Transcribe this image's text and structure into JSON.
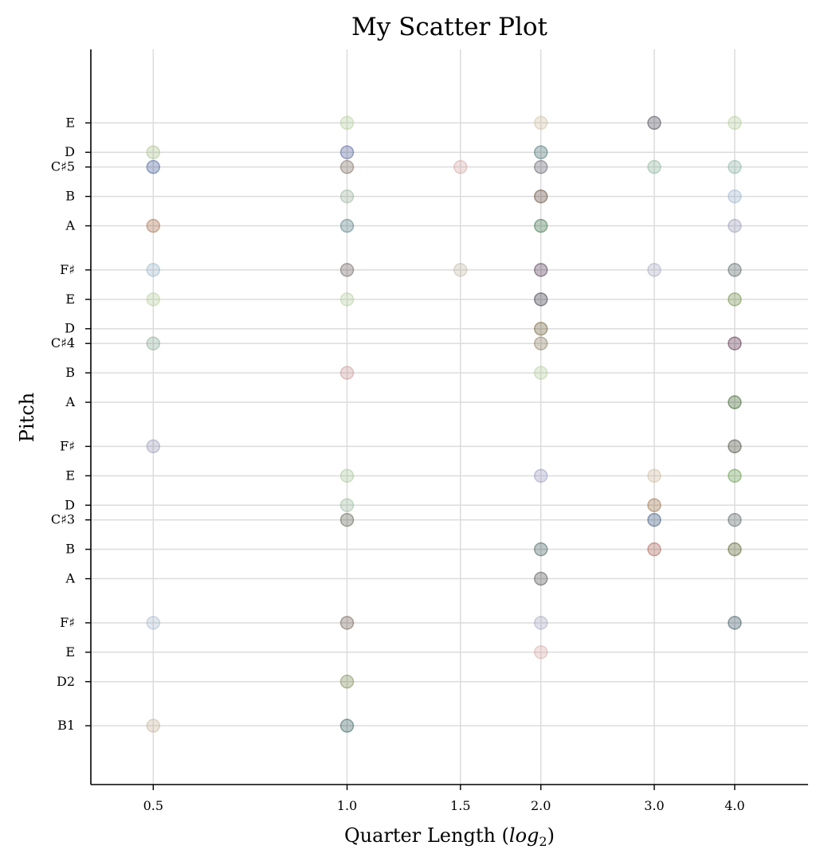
{
  "chart_data": {
    "type": "scatter",
    "title": "My Scatter Plot",
    "xlabel": "Quarter Length (",
    "xlabel_math": "log",
    "xlabel_sub": "2",
    "xlabel_close": ")",
    "ylabel": "Pitch",
    "x_scale": "log2",
    "xlim": [
      0.4,
      5.2
    ],
    "x_ticks": [
      0.5,
      1.0,
      1.5,
      2.0,
      3.0,
      4.0
    ],
    "x_tick_labels": [
      "0.5",
      "1.0",
      "1.5",
      "2.0",
      "3.0",
      "4.0"
    ],
    "ylim": [
      31,
      81
    ],
    "y_ticks": [
      {
        "midi": 35,
        "label": "B1"
      },
      {
        "midi": 38,
        "label": "D2"
      },
      {
        "midi": 40,
        "label": "E"
      },
      {
        "midi": 42,
        "label": "F♯"
      },
      {
        "midi": 45,
        "label": "A"
      },
      {
        "midi": 47,
        "label": "B"
      },
      {
        "midi": 49,
        "label": "C♯3"
      },
      {
        "midi": 50,
        "label": "D"
      },
      {
        "midi": 52,
        "label": "E"
      },
      {
        "midi": 54,
        "label": "F♯"
      },
      {
        "midi": 57,
        "label": "A"
      },
      {
        "midi": 59,
        "label": "B"
      },
      {
        "midi": 61,
        "label": "C♯4"
      },
      {
        "midi": 62,
        "label": "D"
      },
      {
        "midi": 64,
        "label": "E"
      },
      {
        "midi": 66,
        "label": "F♯"
      },
      {
        "midi": 69,
        "label": "A"
      },
      {
        "midi": 71,
        "label": "B"
      },
      {
        "midi": 73,
        "label": "C♯5"
      },
      {
        "midi": 74,
        "label": "D"
      },
      {
        "midi": 76,
        "label": "E"
      }
    ],
    "grid": true,
    "legend": "none",
    "marker_opacity": 0.3,
    "points": [
      {
        "x": 0.5,
        "y": 74,
        "color": "#9bb87a"
      },
      {
        "x": 0.5,
        "y": 73,
        "color": "#2a4a8a"
      },
      {
        "x": 0.5,
        "y": 69,
        "color": "#9a5a30"
      },
      {
        "x": 0.5,
        "y": 66,
        "color": "#8aa8c0"
      },
      {
        "x": 0.5,
        "y": 64,
        "color": "#a8c88a"
      },
      {
        "x": 0.5,
        "y": 61,
        "color": "#7aa08a"
      },
      {
        "x": 0.5,
        "y": 54,
        "color": "#8a8ab0"
      },
      {
        "x": 0.5,
        "y": 42,
        "color": "#9ab0c8"
      },
      {
        "x": 0.5,
        "y": 35,
        "color": "#c0a888"
      },
      {
        "x": 1.0,
        "y": 76,
        "color": "#a8c88a"
      },
      {
        "x": 1.0,
        "y": 74,
        "color": "#3a4a8a"
      },
      {
        "x": 1.0,
        "y": 73,
        "color": "#6a5a4a"
      },
      {
        "x": 1.0,
        "y": 71,
        "color": "#8aa890"
      },
      {
        "x": 1.0,
        "y": 69,
        "color": "#3a6a70"
      },
      {
        "x": 1.0,
        "y": 66,
        "color": "#5a4a4a"
      },
      {
        "x": 1.0,
        "y": 64,
        "color": "#a8c890"
      },
      {
        "x": 1.0,
        "y": 59,
        "color": "#c08888"
      },
      {
        "x": 1.0,
        "y": 52,
        "color": "#9ac08a"
      },
      {
        "x": 1.0,
        "y": 50,
        "color": "#8ab090"
      },
      {
        "x": 1.0,
        "y": 49,
        "color": "#4a4a3a"
      },
      {
        "x": 1.0,
        "y": 42,
        "color": "#5a4a3a"
      },
      {
        "x": 1.0,
        "y": 38,
        "color": "#6a7a3a"
      },
      {
        "x": 1.0,
        "y": 35,
        "color": "#1a4a4a"
      },
      {
        "x": 1.5,
        "y": 73,
        "color": "#d09a9a"
      },
      {
        "x": 1.5,
        "y": 66,
        "color": "#b8b098"
      },
      {
        "x": 2.0,
        "y": 76,
        "color": "#c8b898"
      },
      {
        "x": 2.0,
        "y": 74,
        "color": "#2a5a5a"
      },
      {
        "x": 2.0,
        "y": 73,
        "color": "#4a4a5a"
      },
      {
        "x": 2.0,
        "y": 71,
        "color": "#4a2a1a"
      },
      {
        "x": 2.0,
        "y": 69,
        "color": "#1a5a2a"
      },
      {
        "x": 2.0,
        "y": 66,
        "color": "#3a1a3a"
      },
      {
        "x": 2.0,
        "y": 64,
        "color": "#1a1a2a"
      },
      {
        "x": 2.0,
        "y": 62,
        "color": "#5a4a1a"
      },
      {
        "x": 2.0,
        "y": 61,
        "color": "#7a6a4a"
      },
      {
        "x": 2.0,
        "y": 59,
        "color": "#a8c890"
      },
      {
        "x": 2.0,
        "y": 52,
        "color": "#8a8ab8"
      },
      {
        "x": 2.0,
        "y": 47,
        "color": "#2a4a4a"
      },
      {
        "x": 2.0,
        "y": 45,
        "color": "#3a3a3a"
      },
      {
        "x": 2.0,
        "y": 42,
        "color": "#9a9ab8"
      },
      {
        "x": 2.0,
        "y": 40,
        "color": "#d0a098"
      },
      {
        "x": 3.0,
        "y": 76,
        "color": "#2a2a3a"
      },
      {
        "x": 3.0,
        "y": 73,
        "color": "#7aa890"
      },
      {
        "x": 3.0,
        "y": 66,
        "color": "#9a9ab8"
      },
      {
        "x": 3.0,
        "y": 52,
        "color": "#c8b090"
      },
      {
        "x": 3.0,
        "y": 50,
        "color": "#8a5a2a"
      },
      {
        "x": 3.0,
        "y": 49,
        "color": "#1a3a6a"
      },
      {
        "x": 3.0,
        "y": 47,
        "color": "#a04a3a"
      },
      {
        "x": 4.0,
        "y": 76,
        "color": "#a8c88a"
      },
      {
        "x": 4.0,
        "y": 73,
        "color": "#7aa898"
      },
      {
        "x": 4.0,
        "y": 71,
        "color": "#8aa8c8"
      },
      {
        "x": 4.0,
        "y": 69,
        "color": "#8a8ab0"
      },
      {
        "x": 4.0,
        "y": 66,
        "color": "#3a4a4a"
      },
      {
        "x": 4.0,
        "y": 64,
        "color": "#5a7a2a"
      },
      {
        "x": 4.0,
        "y": 61,
        "color": "#3a0a2a"
      },
      {
        "x": 4.0,
        "y": 57,
        "color": "#1a4a0a"
      },
      {
        "x": 4.0,
        "y": 54,
        "color": "#2a2a1a"
      },
      {
        "x": 4.0,
        "y": 52,
        "color": "#4a8a2a"
      },
      {
        "x": 4.0,
        "y": 49,
        "color": "#3a4a4a"
      },
      {
        "x": 4.0,
        "y": 47,
        "color": "#3a4a0a"
      },
      {
        "x": 4.0,
        "y": 42,
        "color": "#1a3a4a"
      }
    ]
  }
}
